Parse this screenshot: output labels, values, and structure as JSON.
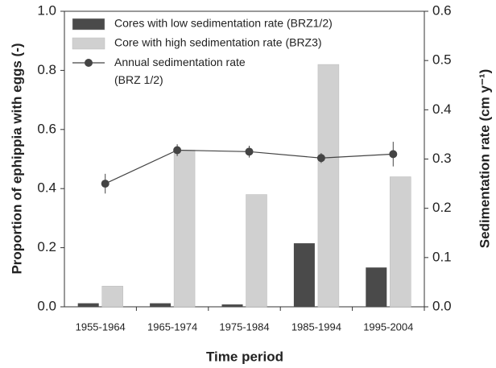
{
  "chart_data": {
    "type": "bar",
    "x_label": "Time period",
    "y_label": "Proportion of ephippia with eggs (-)",
    "y2_label": "Sedimentation rate (cm y⁻¹)",
    "categories": [
      "1955-1964",
      "1965-1974",
      "1975-1984",
      "1985-1994",
      "1995-2004"
    ],
    "series": [
      {
        "name": "Cores with low sedimentation rate (BRZ1/2)",
        "color": "#4a4a4a",
        "type": "bar",
        "values": [
          0.012,
          0.012,
          0.008,
          0.215,
          0.133
        ]
      },
      {
        "name": "Core with high sedimentation rate (BRZ3)",
        "color": "#d0d0d0",
        "type": "bar",
        "values": [
          0.07,
          0.53,
          0.38,
          0.82,
          0.44
        ]
      },
      {
        "name": "Annual sedimentation rate (BRZ 1/2)",
        "color": "#444444",
        "type": "line",
        "axis": "y2",
        "values": [
          0.25,
          0.318,
          0.315,
          0.302,
          0.31
        ],
        "errors": [
          0.02,
          0.012,
          0.012,
          0.01,
          0.025
        ]
      }
    ],
    "ylim": [
      0,
      1.0
    ],
    "yticks": [
      {
        "value": 0,
        "label": "0.0"
      },
      0.2,
      0.4,
      0.6,
      0.8,
      {
        "value": 1.0,
        "label": "1.0"
      }
    ],
    "y2lim": [
      0,
      0.6
    ],
    "y2ticks": [
      {
        "value": 0,
        "label": "0.0"
      },
      0.1,
      0.2,
      0.3,
      0.4,
      0.5,
      0.6
    ],
    "legend": "upper-left"
  }
}
